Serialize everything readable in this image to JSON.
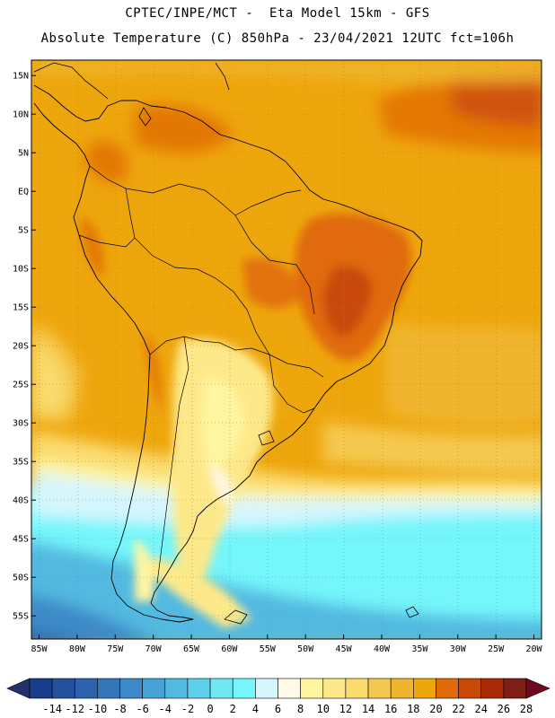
{
  "title": {
    "line1": "CPTEC/INPE/MCT -  Eta Model 15km - GFS",
    "line2": "Absolute Temperature (C) 850hPa - 23/04/2021 12UTC fct=106h"
  },
  "map": {
    "lon_range": [
      -86,
      -19
    ],
    "lat_range": [
      -58,
      17
    ],
    "lat_ticks": [
      "15N",
      "10N",
      "5N",
      "EQ",
      "5S",
      "10S",
      "15S",
      "20S",
      "25S",
      "30S",
      "35S",
      "40S",
      "45S",
      "50S",
      "55S"
    ],
    "lat_values": [
      15,
      10,
      5,
      0,
      -5,
      -10,
      -15,
      -20,
      -25,
      -30,
      -35,
      -40,
      -45,
      -50,
      -55
    ],
    "lon_ticks": [
      "85W",
      "80W",
      "75W",
      "70W",
      "65W",
      "60W",
      "55W",
      "50W",
      "45W",
      "40W",
      "35W",
      "30W",
      "25W",
      "20W"
    ],
    "lon_values": [
      -85,
      -80,
      -75,
      -70,
      -65,
      -60,
      -55,
      -50,
      -45,
      -40,
      -35,
      -30,
      -25,
      -20
    ],
    "grid": "dotted"
  },
  "colorbar": {
    "labels": [
      "-14",
      "-12",
      "-10",
      "-8",
      "-6",
      "-4",
      "-2",
      "0",
      "2",
      "4",
      "6",
      "8",
      "10",
      "12",
      "14",
      "16",
      "18",
      "20",
      "22",
      "24",
      "26",
      "28"
    ],
    "colors": [
      "#1a3c8c",
      "#24509e",
      "#2d62ae",
      "#3576ba",
      "#3e8ac8",
      "#47a3d6",
      "#52b9e0",
      "#5fd0ea",
      "#6fe8f2",
      "#74f6fb",
      "#d6f6fd",
      "#fff9e6",
      "#fff5a0",
      "#fde98a",
      "#fadb6e",
      "#f5c94f",
      "#f0b52e",
      "#eea60d",
      "#e06a08",
      "#c94a07",
      "#a92a06",
      "#7f1e14"
    ],
    "end_low_color": "#22306e",
    "end_high_color": "#70081e"
  }
}
